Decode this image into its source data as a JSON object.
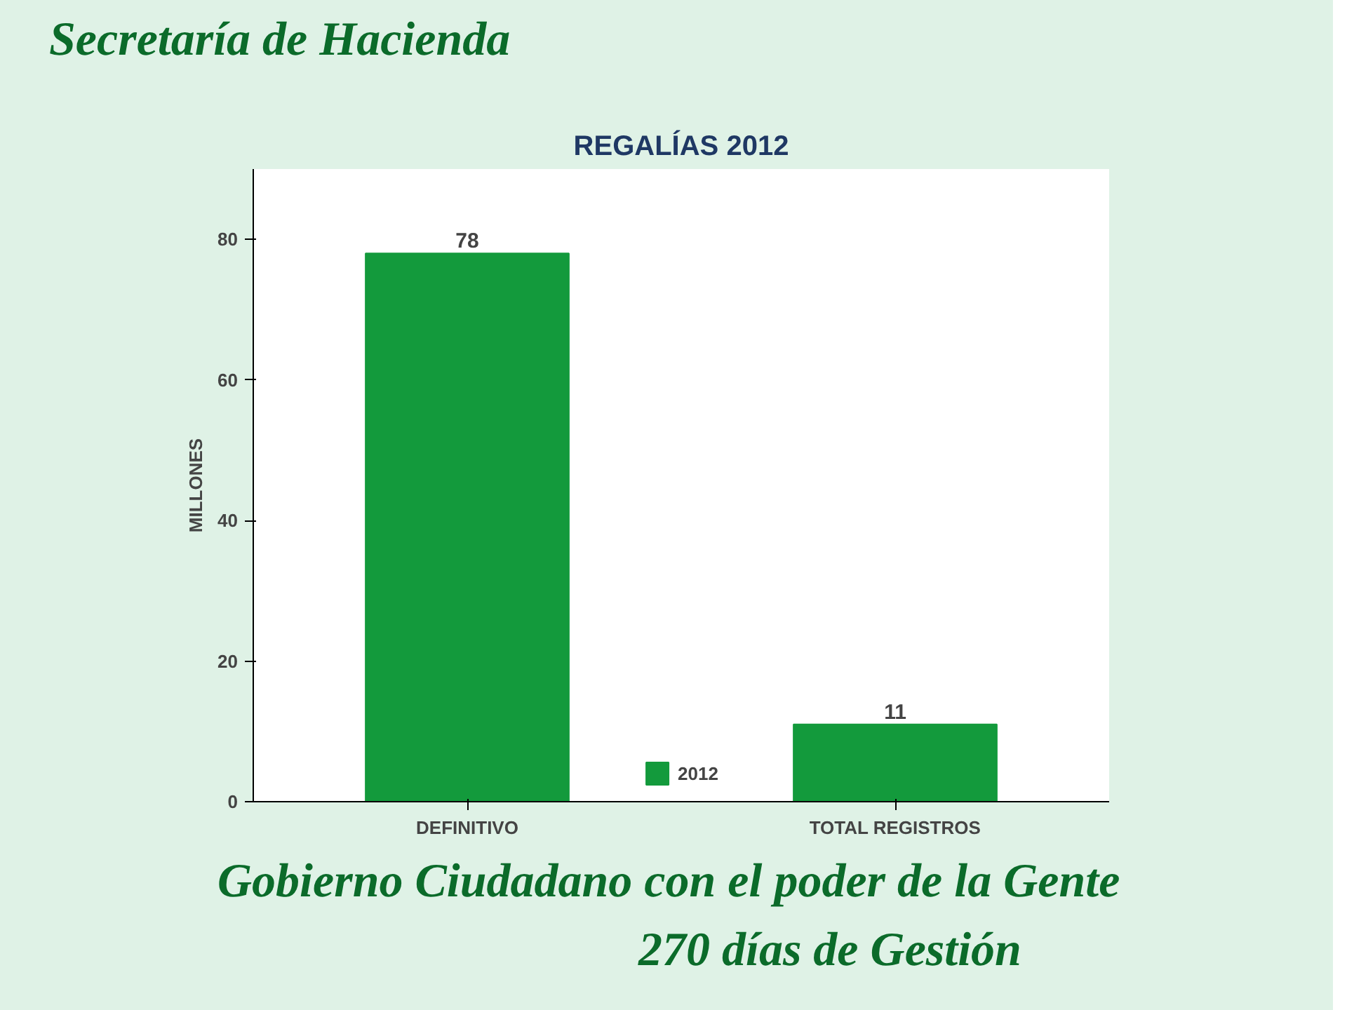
{
  "chart_data": {
    "type": "bar",
    "title": "REGALÍAS 2012",
    "ylabel": "MILLONES",
    "categories": [
      "DEFINITIVO",
      "TOTAL REGISTROS"
    ],
    "series": [
      {
        "name": "2012",
        "color": "#139a3c",
        "values": [
          78,
          11
        ]
      }
    ],
    "ylim": [
      0,
      90
    ],
    "yticks": [
      0,
      20,
      40,
      60,
      80
    ],
    "data_labels": true,
    "legend": "bottom",
    "grid": false,
    "annotations": [
      "Secretaría de Hacienda",
      "Gobierno Ciudadano con el poder de la Gente",
      "270 días de Gestión"
    ]
  }
}
